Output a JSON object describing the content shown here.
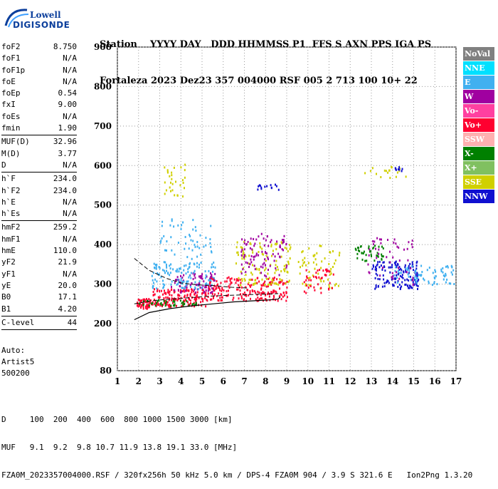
{
  "logo": {
    "line1": "Lowell",
    "line2": "DIGISONDE"
  },
  "header": {
    "row1": "Station    YYYY DAY   DDD HHMMSS P1  FFS S AXN PPS IGA PS",
    "row2": "Fortaleza 2023 Dez23 357 004000 RSF 005 2 713 100 10+ 22"
  },
  "params": [
    [
      {
        "k": "foF2",
        "v": "8.750"
      },
      {
        "k": "foF1",
        "v": "N/A"
      },
      {
        "k": "foF1p",
        "v": "N/A"
      },
      {
        "k": "foE",
        "v": "N/A"
      },
      {
        "k": "foEp",
        "v": "0.54"
      },
      {
        "k": "fxI",
        "v": "9.00"
      },
      {
        "k": "foEs",
        "v": "N/A"
      },
      {
        "k": "fmin",
        "v": "1.90"
      }
    ],
    [
      {
        "k": "MUF(D)",
        "v": "32.96"
      },
      {
        "k": "M(D)",
        "v": "3.77"
      },
      {
        "k": "D",
        "v": "N/A"
      }
    ],
    [
      {
        "k": "h`F",
        "v": "234.0"
      },
      {
        "k": "h`F2",
        "v": "234.0"
      },
      {
        "k": "h`E",
        "v": "N/A"
      },
      {
        "k": "h`Es",
        "v": "N/A"
      }
    ],
    [
      {
        "k": "hmF2",
        "v": "259.2"
      },
      {
        "k": "hmF1",
        "v": "N/A"
      },
      {
        "k": "hmE",
        "v": "110.0"
      },
      {
        "k": "yF2",
        "v": "21.9"
      },
      {
        "k": "yF1",
        "v": "N/A"
      },
      {
        "k": "yE",
        "v": "20.0"
      },
      {
        "k": "B0",
        "v": "17.1"
      },
      {
        "k": "B1",
        "v": "4.20"
      }
    ],
    [
      {
        "k": "C-level",
        "v": "44"
      }
    ]
  ],
  "extra": {
    "auto": "Auto:",
    "artist": "Artist5",
    "version": "500200"
  },
  "bottom": {
    "d_row": "D     100  200  400  600  800 1000 1500 3000 [km]",
    "muf_row": "MUF   9.1  9.2  9.8 10.7 11.9 13.8 19.1 33.0 [MHz]",
    "file_row": "FZA0M_2023357004000.RSF / 320fx256h 50 kHz 5.0 km / DPS-4 FZA0M 904 / 3.9 S 321.6 E   Ion2Png 1.3.20"
  },
  "legend": [
    {
      "label": "NoVal",
      "bg": "#808080",
      "fg": "#ffffff"
    },
    {
      "label": "NNE",
      "bg": "#00e0ff",
      "fg": "#ffffff"
    },
    {
      "label": "E",
      "bg": "#40b0f0",
      "fg": "#ffffff"
    },
    {
      "label": "W",
      "bg": "#a000a0",
      "fg": "#ffffff"
    },
    {
      "label": "Vo-",
      "bg": "#ff40a0",
      "fg": "#ffffff"
    },
    {
      "label": "Vo+",
      "bg": "#ff0030",
      "fg": "#ffffff"
    },
    {
      "label": "SSW",
      "bg": "#ffb0b0",
      "fg": "#ffffff"
    },
    {
      "label": "X-",
      "bg": "#008000",
      "fg": "#ffffff"
    },
    {
      "label": "X+",
      "bg": "#80c060",
      "fg": "#ffffff"
    },
    {
      "label": "SSE",
      "bg": "#d0d000",
      "fg": "#ffffff"
    },
    {
      "label": "NNW",
      "bg": "#1010d0",
      "fg": "#ffffff"
    }
  ],
  "chart_data": {
    "type": "scatter",
    "title": "",
    "xlabel": "",
    "ylabel": "",
    "xlim": [
      1,
      17
    ],
    "ylim": [
      80,
      900
    ],
    "xticks": [
      1,
      2,
      3,
      4,
      5,
      6,
      7,
      8,
      9,
      10,
      11,
      12,
      13,
      14,
      15,
      16,
      17
    ],
    "yticks": [
      80,
      200,
      300,
      400,
      500,
      600,
      700,
      800,
      900
    ],
    "grid": true,
    "legend_position": "right",
    "colors": {
      "NoVal": "#808080",
      "NNE": "#00e0ff",
      "E": "#40b0f0",
      "W": "#a000a0",
      "Vo-": "#ff40a0",
      "Vo+": "#ff0030",
      "SSW": "#ffb0b0",
      "X-": "#008000",
      "X+": "#80c060",
      "SSE": "#d0d000",
      "NNW": "#1010d0"
    },
    "clusters": [
      {
        "name": "Vo+",
        "fmin": 1.9,
        "fmax": 2.6,
        "hmin": 240,
        "hmax": 265,
        "n": 60
      },
      {
        "name": "Vo+",
        "fmin": 2.6,
        "fmax": 5.2,
        "hmin": 245,
        "hmax": 290,
        "n": 160
      },
      {
        "name": "X-",
        "fmin": 2.0,
        "fmax": 4.8,
        "hmin": 248,
        "hmax": 262,
        "n": 40
      },
      {
        "name": "W",
        "fmin": 3.5,
        "fmax": 5.6,
        "hmin": 280,
        "hmax": 330,
        "n": 90
      },
      {
        "name": "E",
        "fmin": 2.6,
        "fmax": 5.6,
        "hmin": 290,
        "hmax": 360,
        "n": 120
      },
      {
        "name": "E",
        "fmin": 3.0,
        "fmax": 5.6,
        "hmin": 340,
        "hmax": 470,
        "n": 60
      },
      {
        "name": "SSE",
        "fmin": 3.0,
        "fmax": 4.2,
        "hmin": 520,
        "hmax": 610,
        "n": 30
      },
      {
        "name": "Vo+",
        "fmin": 5.2,
        "fmax": 9.0,
        "hmin": 260,
        "hmax": 320,
        "n": 200
      },
      {
        "name": "SSE",
        "fmin": 6.5,
        "fmax": 9.2,
        "hmin": 300,
        "hmax": 410,
        "n": 120
      },
      {
        "name": "W",
        "fmin": 6.8,
        "fmax": 9.0,
        "hmin": 320,
        "hmax": 430,
        "n": 90
      },
      {
        "name": "NNW",
        "fmin": 7.6,
        "fmax": 8.6,
        "hmin": 540,
        "hmax": 555,
        "n": 14
      },
      {
        "name": "SSE",
        "fmin": 9.5,
        "fmax": 11.5,
        "hmin": 290,
        "hmax": 400,
        "n": 60
      },
      {
        "name": "Vo+",
        "fmin": 9.8,
        "fmax": 11.2,
        "hmin": 280,
        "hmax": 340,
        "n": 40
      },
      {
        "name": "X-",
        "fmin": 12.2,
        "fmax": 13.6,
        "hmin": 360,
        "hmax": 400,
        "n": 40
      },
      {
        "name": "NNW",
        "fmin": 13.0,
        "fmax": 15.2,
        "hmin": 290,
        "hmax": 360,
        "n": 140
      },
      {
        "name": "E",
        "fmin": 14.0,
        "fmax": 16.9,
        "hmin": 300,
        "hmax": 350,
        "n": 70
      },
      {
        "name": "W",
        "fmin": 12.8,
        "fmax": 15.0,
        "hmin": 300,
        "hmax": 420,
        "n": 50
      },
      {
        "name": "SSE",
        "fmin": 12.5,
        "fmax": 14.6,
        "hmin": 570,
        "hmax": 600,
        "n": 18
      },
      {
        "name": "NNW",
        "fmin": 14.0,
        "fmax": 14.7,
        "hmin": 585,
        "hmax": 600,
        "n": 8
      }
    ],
    "profile_curve": {
      "name": "profile",
      "x": [
        1.8,
        2.5,
        3.5,
        4.5,
        5.5,
        6.5,
        7.5,
        8.2,
        8.6,
        8.7
      ],
      "y": [
        210,
        228,
        238,
        245,
        250,
        255,
        258,
        260,
        262,
        268
      ]
    },
    "dashed_upper": {
      "name": "upper",
      "x": [
        1.8,
        2.5,
        3.3,
        4.0,
        4.8,
        5.6,
        6.4,
        7.2
      ],
      "y": [
        365,
        335,
        315,
        303,
        298,
        296,
        292,
        290
      ]
    },
    "dashed_lower": {
      "name": "lower",
      "x": [
        1.8,
        2.6,
        3.5,
        4.5,
        5.5,
        6.5,
        7.5,
        8.2,
        8.6
      ],
      "y": [
        250,
        258,
        262,
        266,
        270,
        272,
        274,
        275,
        276
      ]
    }
  }
}
